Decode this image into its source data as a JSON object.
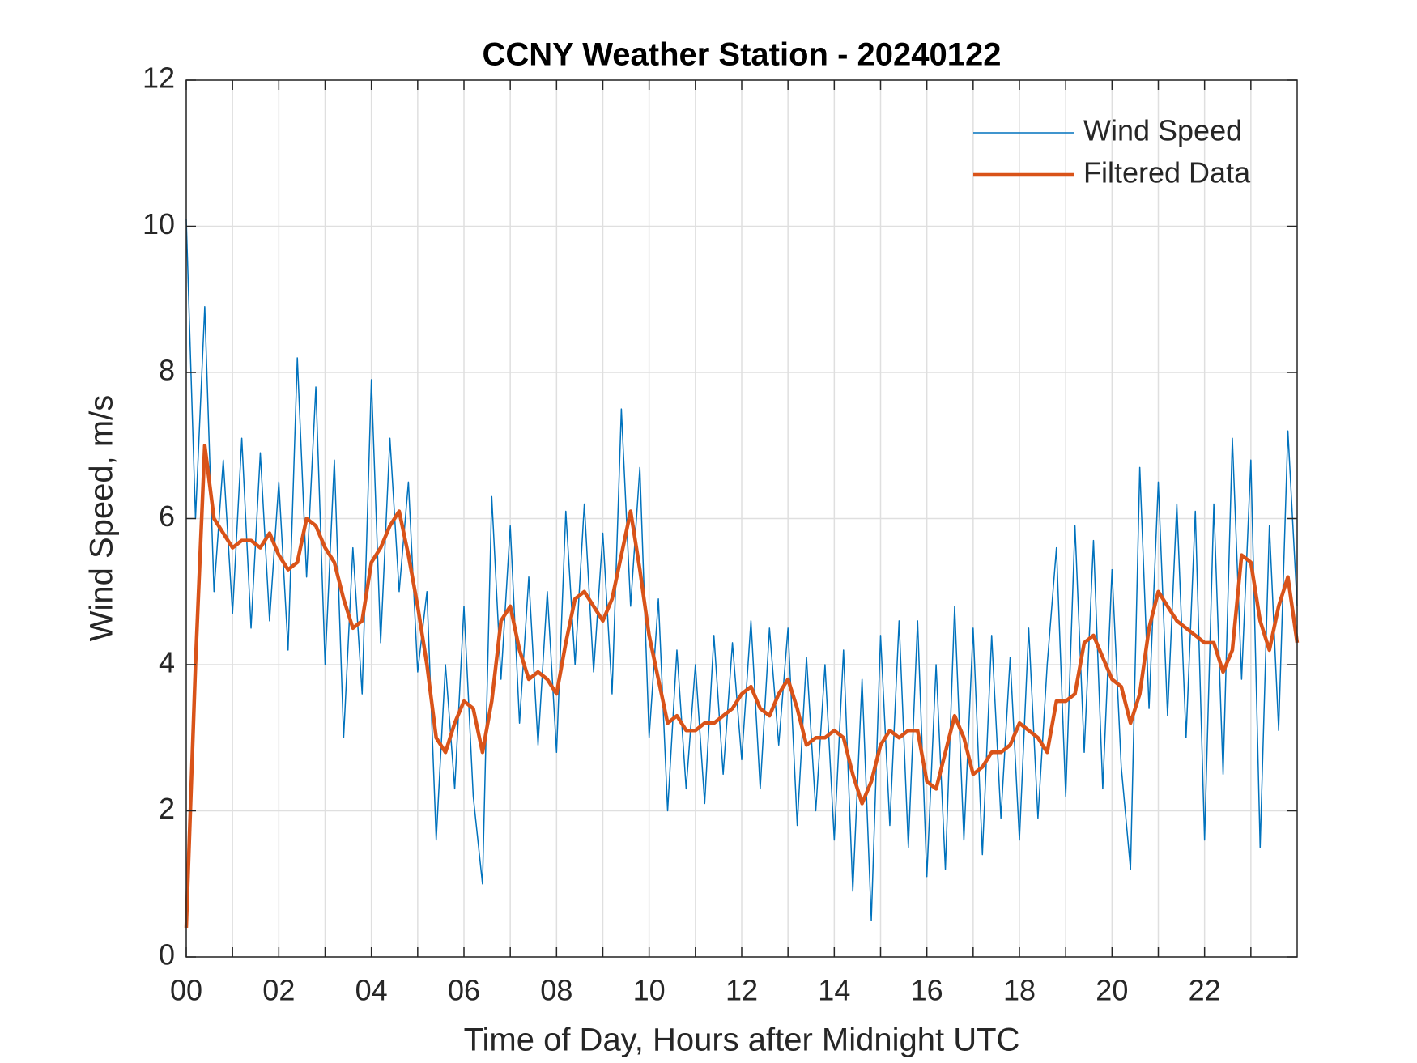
{
  "chart_data": {
    "type": "line",
    "title": "CCNY Weather Station - 20240122",
    "xlabel": "Time of Day, Hours after Midnight UTC",
    "ylabel": "Wind Speed, m/s",
    "xlim": [
      0,
      24
    ],
    "ylim": [
      0,
      12
    ],
    "xticks": [
      {
        "value": 0,
        "label": "00"
      },
      {
        "value": 2,
        "label": "02"
      },
      {
        "value": 4,
        "label": "04"
      },
      {
        "value": 6,
        "label": "06"
      },
      {
        "value": 8,
        "label": "08"
      },
      10,
      12,
      14,
      16,
      18,
      20,
      22
    ],
    "xminorticks": [
      1,
      3,
      5,
      7,
      9,
      11,
      13,
      15,
      17,
      19,
      21,
      23
    ],
    "yticks": [
      0,
      2,
      4,
      6,
      8,
      10,
      12
    ],
    "grid": true,
    "legend": "northeast",
    "x": [
      0,
      0.2,
      0.4,
      0.6,
      0.8,
      1,
      1.2,
      1.4,
      1.6,
      1.8,
      2,
      2.2,
      2.4,
      2.6,
      2.8,
      3,
      3.2,
      3.4,
      3.6,
      3.8,
      4,
      4.2,
      4.4,
      4.6,
      4.8,
      5,
      5.2,
      5.4,
      5.6,
      5.8,
      6,
      6.2,
      6.4,
      6.6,
      6.8,
      7,
      7.2,
      7.4,
      7.6,
      7.8,
      8,
      8.2,
      8.4,
      8.6,
      8.8,
      9,
      9.2,
      9.4,
      9.6,
      9.8,
      10,
      10.2,
      10.4,
      10.6,
      10.8,
      11,
      11.2,
      11.4,
      11.6,
      11.8,
      12,
      12.2,
      12.4,
      12.6,
      12.8,
      13,
      13.2,
      13.4,
      13.6,
      13.8,
      14,
      14.2,
      14.4,
      14.6,
      14.8,
      15,
      15.2,
      15.4,
      15.6,
      15.8,
      16,
      16.2,
      16.4,
      16.6,
      16.8,
      17,
      17.2,
      17.4,
      17.6,
      17.8,
      18,
      18.2,
      18.4,
      18.6,
      18.8,
      19,
      19.2,
      19.4,
      19.6,
      19.8,
      20,
      20.2,
      20.4,
      20.6,
      20.8,
      21,
      21.2,
      21.4,
      21.6,
      21.8,
      22,
      22.2,
      22.4,
      22.6,
      22.8,
      23,
      23.2,
      23.4,
      23.6,
      23.8,
      24
    ],
    "series": [
      {
        "name": "Wind Speed",
        "color": "#0072BD",
        "width": 1.5,
        "values": [
          10.1,
          6.0,
          8.9,
          5.0,
          6.8,
          4.7,
          7.1,
          4.5,
          6.9,
          4.6,
          6.5,
          4.2,
          8.2,
          5.2,
          7.8,
          4.0,
          6.8,
          3.0,
          5.6,
          3.6,
          7.9,
          4.3,
          7.1,
          5.0,
          6.5,
          3.9,
          5.0,
          1.6,
          4.0,
          2.3,
          4.8,
          2.2,
          1.0,
          6.3,
          3.8,
          5.9,
          3.2,
          5.2,
          2.9,
          5.0,
          2.8,
          6.1,
          4.0,
          6.2,
          3.9,
          5.8,
          3.6,
          7.5,
          4.8,
          6.7,
          3.0,
          4.9,
          2.0,
          4.2,
          2.3,
          4.0,
          2.1,
          4.4,
          2.5,
          4.3,
          2.7,
          4.6,
          2.3,
          4.5,
          2.9,
          4.5,
          1.8,
          4.1,
          2.0,
          4.0,
          1.6,
          4.2,
          0.9,
          3.8,
          0.5,
          4.4,
          1.8,
          4.6,
          1.5,
          4.6,
          1.1,
          4.0,
          1.2,
          4.8,
          1.6,
          4.5,
          1.4,
          4.4,
          1.9,
          4.1,
          1.6,
          4.5,
          1.9,
          4.0,
          5.6,
          2.2,
          5.9,
          2.8,
          5.7,
          2.3,
          5.3,
          2.6,
          1.2,
          6.7,
          3.4,
          6.5,
          3.3,
          6.2,
          3.0,
          6.1,
          1.6,
          6.2,
          2.5,
          7.1,
          3.8,
          6.8,
          1.5,
          5.9,
          3.1,
          7.2,
          4.8
        ]
      },
      {
        "name": "Filtered Data",
        "color": "#D95319",
        "width": 4.5,
        "values": [
          0.4,
          4.0,
          7.0,
          6.0,
          5.8,
          5.6,
          5.7,
          5.7,
          5.6,
          5.8,
          5.5,
          5.3,
          5.4,
          6.0,
          5.9,
          5.6,
          5.4,
          4.9,
          4.5,
          4.6,
          5.4,
          5.6,
          5.9,
          6.1,
          5.5,
          4.8,
          4.0,
          3.0,
          2.8,
          3.2,
          3.5,
          3.4,
          2.8,
          3.5,
          4.6,
          4.8,
          4.2,
          3.8,
          3.9,
          3.8,
          3.6,
          4.3,
          4.9,
          5.0,
          4.8,
          4.6,
          4.9,
          5.5,
          6.1,
          5.3,
          4.4,
          3.8,
          3.2,
          3.3,
          3.1,
          3.1,
          3.2,
          3.2,
          3.3,
          3.4,
          3.6,
          3.7,
          3.4,
          3.3,
          3.6,
          3.8,
          3.4,
          2.9,
          3.0,
          3.0,
          3.1,
          3.0,
          2.5,
          2.1,
          2.4,
          2.9,
          3.1,
          3.0,
          3.1,
          3.1,
          2.4,
          2.3,
          2.8,
          3.3,
          3.0,
          2.5,
          2.6,
          2.8,
          2.8,
          2.9,
          3.2,
          3.1,
          3.0,
          2.8,
          3.5,
          3.5,
          3.6,
          4.3,
          4.4,
          4.1,
          3.8,
          3.7,
          3.2,
          3.6,
          4.5,
          5.0,
          4.8,
          4.6,
          4.5,
          4.4,
          4.3,
          4.3,
          3.9,
          4.2,
          5.5,
          5.4,
          4.6,
          4.2,
          4.8,
          5.2,
          4.3
        ]
      }
    ]
  }
}
